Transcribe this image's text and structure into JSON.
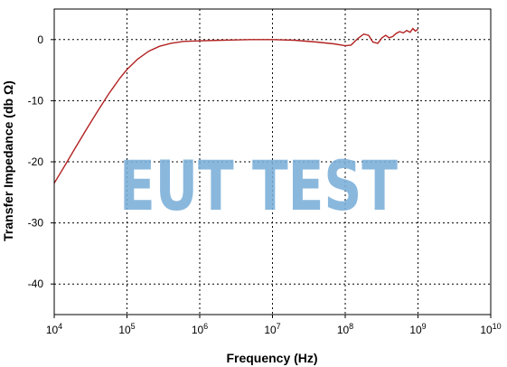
{
  "chart_data": {
    "type": "line",
    "x_scale": "log",
    "x_ticks": [
      {
        "value": 10000,
        "base": "10",
        "exp": "4"
      },
      {
        "value": 100000,
        "base": "10",
        "exp": "5"
      },
      {
        "value": 1000000,
        "base": "10",
        "exp": "6"
      },
      {
        "value": 10000000,
        "base": "10",
        "exp": "7"
      },
      {
        "value": 100000000,
        "base": "10",
        "exp": "8"
      },
      {
        "value": 1000000000,
        "base": "10",
        "exp": "9"
      },
      {
        "value": 10000000000,
        "base": "10",
        "exp": "10"
      }
    ],
    "y_ticks": [
      0,
      -10,
      -20,
      -30,
      -40
    ],
    "xlim": [
      10000,
      10000000000
    ],
    "ylim": [
      -45,
      5
    ],
    "xlabel": "Frequency (Hz)",
    "ylabel": "Transfer Impedance (db Ω)",
    "grid": "dotted",
    "series": [
      {
        "color": "#b22222",
        "points": [
          [
            10000,
            -23.5
          ],
          [
            14000,
            -20.6
          ],
          [
            20000,
            -17.5
          ],
          [
            28000,
            -14.6
          ],
          [
            40000,
            -11.6
          ],
          [
            56000,
            -8.9
          ],
          [
            80000,
            -6.3
          ],
          [
            100000,
            -4.9
          ],
          [
            140000,
            -3.2
          ],
          [
            200000,
            -1.9
          ],
          [
            280000,
            -1.1
          ],
          [
            400000,
            -0.6
          ],
          [
            600000,
            -0.3
          ],
          [
            1000000,
            -0.2
          ],
          [
            2000000,
            -0.1
          ],
          [
            5000000,
            0.0
          ],
          [
            10000000,
            0.0
          ],
          [
            20000000,
            -0.1
          ],
          [
            40000000,
            -0.4
          ],
          [
            70000000,
            -0.7
          ],
          [
            100000000,
            -1.0
          ],
          [
            120000000,
            -0.9
          ],
          [
            150000000,
            0.2
          ],
          [
            180000000,
            0.9
          ],
          [
            210000000,
            0.7
          ],
          [
            240000000,
            -0.4
          ],
          [
            280000000,
            -0.6
          ],
          [
            320000000,
            0.3
          ],
          [
            360000000,
            0.7
          ],
          [
            400000000,
            0.3
          ],
          [
            450000000,
            0.5
          ],
          [
            500000000,
            1.0
          ],
          [
            560000000,
            1.3
          ],
          [
            630000000,
            1.1
          ],
          [
            700000000,
            1.5
          ],
          [
            780000000,
            1.2
          ],
          [
            850000000,
            1.8
          ],
          [
            920000000,
            1.4
          ],
          [
            1000000000,
            1.7
          ]
        ]
      }
    ]
  },
  "watermark": {
    "text": "EUT TEST",
    "color": "#7aaed8"
  }
}
